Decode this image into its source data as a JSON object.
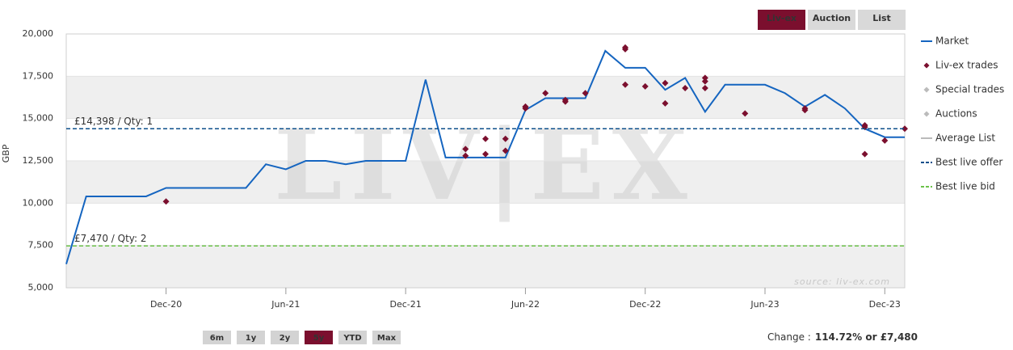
{
  "tabs": [
    "Liv-ex",
    "Auction",
    "List"
  ],
  "active_tab": 0,
  "chart_data": {
    "type": "line",
    "y_label": "GBP",
    "watermark": "LIV|EX",
    "credit": "source: liv-ex.com",
    "xlim": [
      "2020-07",
      "2024-01"
    ],
    "xticks": [
      {
        "value": "2020-12",
        "label": "Dec-20"
      },
      {
        "value": "2021-06",
        "label": "Jun-21"
      },
      {
        "value": "2021-12",
        "label": "Dec-21"
      },
      {
        "value": "2022-06",
        "label": "Jun-22"
      },
      {
        "value": "2022-12",
        "label": "Dec-22"
      },
      {
        "value": "2023-06",
        "label": "Jun-23"
      },
      {
        "value": "2023-12",
        "label": "Dec-23"
      }
    ],
    "ylim": [
      5000,
      20000
    ],
    "yticks": [
      {
        "value": 5000,
        "label": "5,000"
      },
      {
        "value": 7500,
        "label": "7,500"
      },
      {
        "value": 10000,
        "label": "10,000"
      },
      {
        "value": 12500,
        "label": "12,500"
      },
      {
        "value": 15000,
        "label": "15,000"
      },
      {
        "value": 17500,
        "label": "17,500"
      },
      {
        "value": 20000,
        "label": "20,000"
      }
    ],
    "series": [
      {
        "name": "Market",
        "kind": "line",
        "color": "#1565c0",
        "x": [
          "2020-07",
          "2020-08",
          "2020-11",
          "2020-12",
          "2021-04",
          "2021-05",
          "2021-06",
          "2021-07",
          "2021-08",
          "2021-09",
          "2021-10",
          "2021-12",
          "2022-01",
          "2022-02",
          "2022-05",
          "2022-06",
          "2022-07",
          "2022-09",
          "2022-10",
          "2022-11",
          "2022-12",
          "2023-01",
          "2023-02",
          "2023-03",
          "2023-04",
          "2023-06",
          "2023-07",
          "2023-08",
          "2023-09",
          "2023-10",
          "2023-11",
          "2023-12",
          "2024-01"
        ],
        "values": [
          6400,
          10400,
          10400,
          10900,
          10900,
          12300,
          12000,
          12500,
          12500,
          12300,
          12500,
          12500,
          17300,
          12700,
          12700,
          15500,
          16200,
          16200,
          19000,
          18000,
          18000,
          16700,
          17400,
          15400,
          17000,
          17000,
          16500,
          15700,
          16400,
          15600,
          14400,
          13900,
          13900
        ]
      },
      {
        "name": "Liv-ex trades",
        "kind": "scatter",
        "color": "#7b0f2e",
        "x": [
          "2020-12",
          "2022-03",
          "2022-03",
          "2022-04",
          "2022-04",
          "2022-05",
          "2022-05",
          "2022-06",
          "2022-06",
          "2022-06",
          "2022-07",
          "2022-08",
          "2022-08",
          "2022-09",
          "2022-11",
          "2022-11",
          "2022-11",
          "2022-12",
          "2023-01",
          "2023-01",
          "2023-02",
          "2023-03",
          "2023-03",
          "2023-03",
          "2023-05",
          "2023-08",
          "2023-08",
          "2023-11",
          "2023-11",
          "2023-11",
          "2023-12",
          "2024-01"
        ],
        "values": [
          10100,
          13200,
          12800,
          13800,
          12900,
          13100,
          13800,
          15700,
          15600,
          15700,
          16500,
          16100,
          16000,
          16500,
          19200,
          19100,
          17000,
          16900,
          15900,
          17100,
          16800,
          16800,
          17400,
          17200,
          15300,
          15600,
          15500,
          14500,
          14600,
          12900,
          13700,
          14400
        ]
      },
      {
        "name": "Special trades",
        "kind": "scatter",
        "color": "#cccccc",
        "hidden": true,
        "x": [],
        "values": []
      },
      {
        "name": "Auctions",
        "kind": "scatter",
        "color": "#cccccc",
        "hidden": true,
        "x": [],
        "values": []
      },
      {
        "name": "Average List",
        "kind": "line",
        "color": "#cccccc",
        "hidden": true,
        "x": [],
        "values": []
      },
      {
        "name": "Best live offer",
        "kind": "hline",
        "color": "#0d4f8b",
        "values": [
          14398
        ],
        "value_labels": [
          "£14,398 / Qty: 1"
        ]
      },
      {
        "name": "Best live bid",
        "kind": "hline",
        "color": "#6cc24a",
        "values": [
          7470
        ],
        "value_labels": [
          "£7,470 / Qty: 2"
        ]
      }
    ]
  },
  "ranges": [
    "6m",
    "1y",
    "2y",
    "5y",
    "YTD",
    "Max"
  ],
  "active_range": 3,
  "change": {
    "label": "Change :",
    "value": "114.72% or £7,480"
  }
}
